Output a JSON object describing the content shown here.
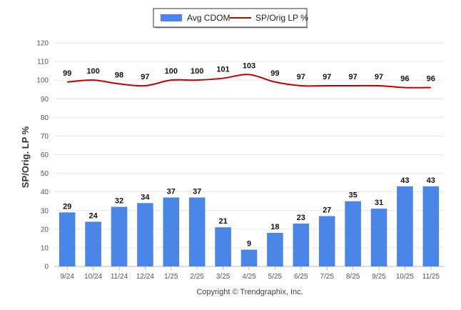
{
  "chart_data": {
    "type": "bar",
    "categories": [
      "9/24",
      "10/24",
      "11/24",
      "12/24",
      "1/25",
      "2/25",
      "3/25",
      "4/25",
      "5/25",
      "6/25",
      "7/25",
      "8/25",
      "9/25",
      "10/25",
      "11/25"
    ],
    "series": [
      {
        "name": "Avg CDOM",
        "kind": "bar",
        "color": "#4a86e8",
        "values": [
          29,
          24,
          32,
          34,
          37,
          37,
          21,
          9,
          18,
          23,
          27,
          35,
          31,
          43,
          43
        ]
      },
      {
        "name": "SP/Orig LP %",
        "kind": "line",
        "color": "#c00000",
        "values": [
          99,
          100,
          98,
          97,
          100,
          100,
          101,
          103,
          99,
          97,
          97,
          97,
          97,
          96,
          96
        ]
      }
    ],
    "ylabel": "SP/Orig. LP %",
    "ylim": [
      0,
      120
    ],
    "yticks": [
      0,
      10,
      20,
      30,
      40,
      50,
      60,
      70,
      80,
      90,
      100,
      110,
      120
    ],
    "grid": true,
    "legend_position": "top-center"
  },
  "footer": {
    "copyright": "Copyright © Trendgraphix, Inc."
  }
}
